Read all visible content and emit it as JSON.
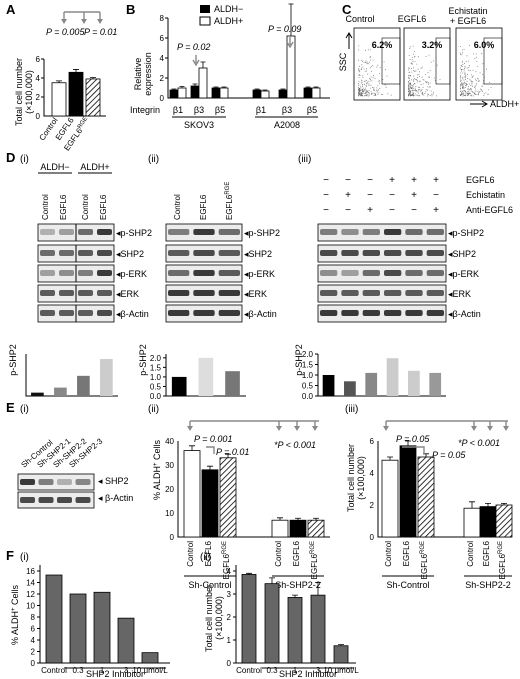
{
  "panels": {
    "A": {
      "label": "A",
      "ylabel": "Total cell number",
      "yunit": "(×100,000)",
      "yticks": [
        "0",
        "2",
        "4",
        "6"
      ],
      "pvals": [
        "P = 0.005",
        "P = 0.01"
      ],
      "categories": [
        "Control",
        "EGFL6",
        "EGFL6"
      ],
      "sup": "RGE"
    },
    "B": {
      "label": "B",
      "ylabel": "Relative",
      "ylabel2": "expression",
      "yticks": [
        "0",
        "2",
        "4",
        "6",
        "8"
      ],
      "legend": [
        "ALDH−",
        "ALDH+"
      ],
      "pvals": [
        "P = 0.02",
        "P = 0.09"
      ],
      "xaxis": "Integrin",
      "ticks": [
        "β1",
        "β3",
        "β5",
        "β1",
        "β3",
        "β5"
      ],
      "groups": [
        "SKOV3",
        "A2008"
      ]
    },
    "C": {
      "label": "C",
      "titles": [
        "Control",
        "EGFL6",
        "Echistatin",
        "+ EGFL6"
      ],
      "pcts": [
        "6.2%",
        "3.2%",
        "6.0%"
      ],
      "y": "SSC",
      "x": "ALDH+"
    },
    "D": {
      "label": "D",
      "sub": [
        "(i)",
        "(ii)",
        "(iii)"
      ],
      "i_top": [
        "ALDH−",
        "ALDH+"
      ],
      "i_lanes": [
        "Control",
        "EGFL6",
        "Control",
        "EGFL6"
      ],
      "ii_lanes": [
        "Control",
        "EGFL6",
        "EGFL6"
      ],
      "sup": "RGE",
      "iii_rows": [
        "EGFL6",
        "Echistatin",
        "Anti-EGFL6"
      ],
      "iii_signs": [
        [
          "−",
          "−",
          "−",
          "+",
          "+",
          "+"
        ],
        [
          "−",
          "+",
          "−",
          "−",
          "+",
          "−"
        ],
        [
          "−",
          "−",
          "+",
          "−",
          "−",
          "+"
        ]
      ],
      "bands": [
        "p-SHP2",
        "SHP2",
        "p-ERK",
        "ERK",
        "β-Actin"
      ],
      "ylabel": "p-SHP2"
    },
    "E": {
      "label": "E",
      "sub": [
        "(i)",
        "(ii)",
        "(iii)"
      ],
      "i_lanes": [
        "Sh-Control",
        "Sh-SHP2-1",
        "Sh-SHP2-2",
        "Sh-SHP2-3"
      ],
      "i_bands": [
        "SHP2",
        "β-Actin"
      ],
      "ii_ylabel": "% ALDH",
      "ii_yticks": [
        "0",
        "10",
        "20",
        "30",
        "40"
      ],
      "ii_pvals": [
        "P = 0.001",
        "P = 0.01",
        "*P < 0.001"
      ],
      "iii_ylabel": "Total cell number",
      "iii_yunit": "(×100,000)",
      "iii_yticks": [
        "0",
        "2",
        "4",
        "6"
      ],
      "iii_pvals": [
        "P = 0.05",
        "P = 0.05",
        "*P < 0.001"
      ],
      "cats": [
        "Control",
        "EGFL6",
        "EGFL6"
      ],
      "groups": [
        "Sh-Control",
        "Sh-SHP2-2"
      ]
    },
    "F": {
      "label": "F",
      "sub": [
        "(i)",
        "(ii)"
      ],
      "i_ylabel": "% ALDH",
      "i_yticks": [
        "0",
        "2",
        "4",
        "6",
        "8",
        "10",
        "12",
        "14",
        "16"
      ],
      "ii_ylabel": "Total cell number",
      "ii_yunit": "(×100,000)",
      "ii_yticks": [
        "0",
        "1",
        "2",
        "3",
        "4"
      ],
      "cats": [
        "Control",
        "0.3",
        "1",
        "3",
        "10 μmol/L"
      ],
      "xlabel": "SHP2 Inhibitor"
    }
  },
  "chart_data": [
    {
      "type": "bar",
      "id": "A",
      "categories": [
        "Control",
        "EGFL6",
        "EGFL6RGE"
      ],
      "values": [
        3.5,
        4.6,
        3.9
      ],
      "errors": [
        0.2,
        0.3,
        0.15
      ],
      "ylim": [
        0,
        6
      ]
    },
    {
      "type": "bar",
      "id": "B",
      "categories": [
        "SKOV3 β1",
        "SKOV3 β3",
        "SKOV3 β5",
        "A2008 β1",
        "A2008 β3",
        "A2008 β5"
      ],
      "series": [
        {
          "name": "ALDH−",
          "values": [
            0.8,
            1.2,
            1.0,
            0.8,
            0.8,
            1.0
          ]
        },
        {
          "name": "ALDH+",
          "values": [
            1.0,
            3.0,
            1.0,
            0.7,
            6.2,
            1.0
          ]
        }
      ],
      "errors": [
        [
          0.1,
          0.2,
          0.1,
          0.1,
          0.1,
          0.1
        ],
        [
          0.15,
          0.6,
          0.1,
          0.1,
          3.2,
          0.1
        ]
      ],
      "ylim": [
        0,
        8
      ]
    },
    {
      "type": "bar",
      "id": "D-i",
      "values": [
        0.2,
        0.5,
        1.2,
        2.2
      ]
    },
    {
      "type": "bar",
      "id": "D-ii",
      "values": [
        1.0,
        2.0,
        1.3
      ]
    },
    {
      "type": "bar",
      "id": "D-iii",
      "values": [
        1.0,
        0.7,
        1.1,
        1.8,
        1.2,
        1.1
      ]
    },
    {
      "type": "bar",
      "id": "E-ii",
      "categories": [
        "Control",
        "EGFL6",
        "EGFL6RGE",
        "Control",
        "EGFL6",
        "EGFL6RGE"
      ],
      "values": [
        36,
        28,
        33,
        7,
        7,
        7
      ],
      "errors": [
        2,
        1.5,
        1.5,
        1,
        0.8,
        0.8
      ],
      "ylim": [
        0,
        40
      ]
    },
    {
      "type": "bar",
      "id": "E-iii",
      "categories": [
        "Control",
        "EGFL6",
        "EGFL6RGE",
        "Control",
        "EGFL6",
        "EGFL6RGE"
      ],
      "values": [
        4.8,
        5.7,
        5.0,
        1.8,
        1.9,
        2.0
      ],
      "errors": [
        0.2,
        0.3,
        0.2,
        0.4,
        0.2,
        0.1
      ],
      "ylim": [
        0,
        6
      ]
    },
    {
      "type": "bar",
      "id": "F-i",
      "categories": [
        "Control",
        "0.3",
        "1",
        "3",
        "10 μmol/L"
      ],
      "values": [
        15.3,
        12.0,
        12.3,
        7.8,
        1.8
      ],
      "ylim": [
        0,
        16
      ]
    },
    {
      "type": "bar",
      "id": "F-ii",
      "categories": [
        "Control",
        "0.3",
        "1",
        "3",
        "10 μmol/L"
      ],
      "values": [
        3.85,
        3.45,
        2.85,
        2.95,
        0.75
      ],
      "errors": [
        0.05,
        0.25,
        0.1,
        0.55,
        0.05
      ],
      "ylim": [
        0,
        4
      ]
    }
  ]
}
